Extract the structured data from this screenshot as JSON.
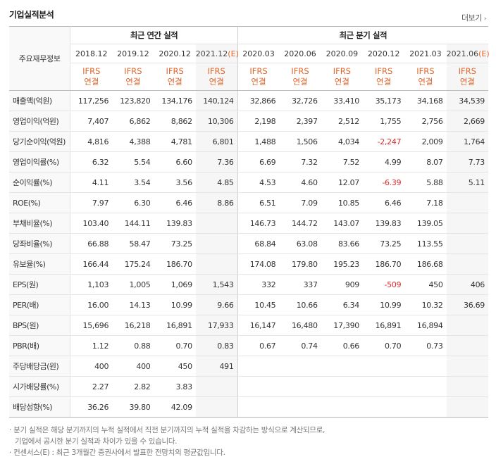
{
  "title": "기업실적분석",
  "more_label": "더보기",
  "header": {
    "row_label": "주요재무정보",
    "annual_label": "최근 연간 실적",
    "quarter_label": "최근 분기 실적",
    "periods": [
      "2018.12",
      "2019.12",
      "2020.12",
      "2021.12",
      "2020.03",
      "2020.06",
      "2020.09",
      "2020.12",
      "2021.03",
      "2021.06"
    ],
    "estimate_mark": "(E)",
    "ifrs_top": "IFRS",
    "ifrs_bottom": "연결"
  },
  "rows": [
    {
      "label": "매출액(억원)",
      "values": [
        "117,256",
        "123,820",
        "134,176",
        "140,124",
        "32,866",
        "32,726",
        "33,410",
        "35,173",
        "34,168",
        "34,539"
      ]
    },
    {
      "label": "영업이익(억원)",
      "values": [
        "7,407",
        "6,862",
        "8,862",
        "10,306",
        "2,198",
        "2,397",
        "2,512",
        "1,755",
        "2,756",
        "2,669"
      ]
    },
    {
      "label": "당기순이익(억원)",
      "values": [
        "4,816",
        "4,388",
        "4,781",
        "6,801",
        "1,488",
        "1,506",
        "4,034",
        "-2,247",
        "2,009",
        "1,764"
      ]
    },
    {
      "label": "영업이익률(%)",
      "values": [
        "6.32",
        "5.54",
        "6.60",
        "7.36",
        "6.69",
        "7.32",
        "7.52",
        "4.99",
        "8.07",
        "7.73"
      ]
    },
    {
      "label": "순이익률(%)",
      "values": [
        "4.11",
        "3.54",
        "3.56",
        "4.85",
        "4.53",
        "4.60",
        "12.07",
        "-6.39",
        "5.88",
        "5.11"
      ]
    },
    {
      "label": "ROE(%)",
      "values": [
        "7.97",
        "6.30",
        "6.46",
        "8.86",
        "6.51",
        "7.09",
        "10.85",
        "6.46",
        "7.18",
        ""
      ]
    },
    {
      "label": "부채비율(%)",
      "values": [
        "103.40",
        "144.11",
        "139.83",
        "",
        "146.73",
        "144.72",
        "143.07",
        "139.83",
        "139.05",
        ""
      ]
    },
    {
      "label": "당좌비율(%)",
      "values": [
        "66.88",
        "58.47",
        "73.25",
        "",
        "68.84",
        "63.08",
        "83.66",
        "73.25",
        "113.55",
        ""
      ]
    },
    {
      "label": "유보율(%)",
      "values": [
        "166.44",
        "175.24",
        "186.70",
        "",
        "174.08",
        "179.80",
        "195.23",
        "186.70",
        "186.68",
        ""
      ]
    },
    {
      "label": "EPS(원)",
      "values": [
        "1,103",
        "1,005",
        "1,069",
        "1,543",
        "332",
        "337",
        "909",
        "-509",
        "450",
        "406"
      ]
    },
    {
      "label": "PER(배)",
      "values": [
        "16.00",
        "14.13",
        "10.99",
        "9.66",
        "10.45",
        "10.66",
        "6.34",
        "10.99",
        "10.32",
        "36.69"
      ]
    },
    {
      "label": "BPS(원)",
      "values": [
        "15,696",
        "16,218",
        "16,891",
        "17,933",
        "16,147",
        "16,480",
        "17,390",
        "16,891",
        "16,894",
        ""
      ]
    },
    {
      "label": "PBR(배)",
      "values": [
        "1.12",
        "0.88",
        "0.70",
        "0.83",
        "0.67",
        "0.74",
        "0.66",
        "0.70",
        "0.73",
        ""
      ]
    },
    {
      "label": "주당배당금(원)",
      "values": [
        "400",
        "400",
        "450",
        "491",
        "",
        "",
        "",
        "",
        "",
        ""
      ]
    },
    {
      "label": "시가배당률(%)",
      "values": [
        "2.27",
        "2.82",
        "3.83",
        "",
        "",
        "",
        "",
        "",
        "",
        ""
      ]
    },
    {
      "label": "배당성향(%)",
      "values": [
        "36.26",
        "39.80",
        "42.09",
        "",
        "",
        "",
        "",
        "",
        "",
        ""
      ]
    }
  ],
  "notes": {
    "line1": "분기 실적은 해당 분기까지의 누적 실적에서 직전 분기까지의 누적 실적을 차감하는 방식으로 계산되므로,",
    "line2": "기업에서 공시한 분기 실적과 차이가 있을 수 있습니다.",
    "line3_prefix": "컨센서스",
    "line3_mark": "(E)",
    "line3_rest": " : 최근 3개월간 증권사에서 발표한 전망치의 평균값입니다.",
    "bullet": "·"
  },
  "colors": {
    "accent": "#e2672b",
    "negative": "#e02b2b",
    "estimate_bg": "#f6f6f6"
  }
}
